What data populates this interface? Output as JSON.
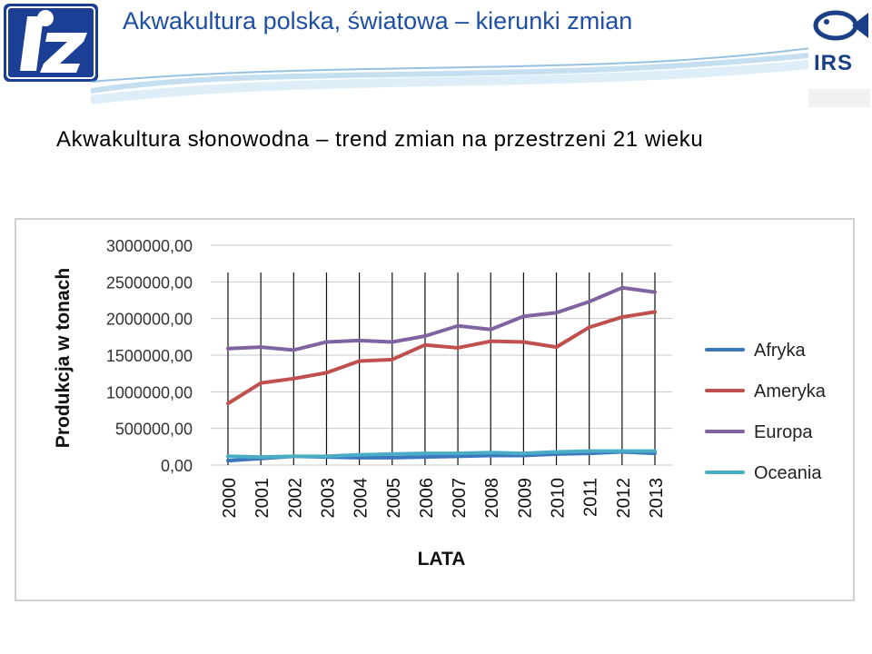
{
  "header": {
    "title": "Akwakultura polska, światowa – kierunki zmian",
    "left_logo_icon": "iz-logo-icon",
    "right_logo_icon": "irs-fish-logo-icon",
    "right_logo_text": "IRS"
  },
  "slide": {
    "subtitle": "Akwakultura słonowodna – trend zmian na przestrzeni 21 wieku"
  },
  "chart_data": {
    "type": "line",
    "title": "",
    "xlabel": "LATA",
    "ylabel": "Produkcja w tonach",
    "categories": [
      "2000",
      "2001",
      "2002",
      "2003",
      "2004",
      "2005",
      "2006",
      "2007",
      "2008",
      "2009",
      "2010",
      "2011",
      "2012",
      "2013"
    ],
    "yticks": [
      "0,00",
      "500000,00",
      "1000000,00",
      "1500000,00",
      "2000000,00",
      "2500000,00",
      "3000000,00"
    ],
    "ylim": [
      0,
      3000000
    ],
    "grid": "horizontal and vertical",
    "legend_position": "right",
    "series": [
      {
        "name": "Afryka",
        "color": "#3b77bd",
        "values": [
          60000,
          90000,
          120000,
          110000,
          100000,
          100000,
          110000,
          120000,
          130000,
          130000,
          150000,
          160000,
          180000,
          160000
        ]
      },
      {
        "name": "Ameryka",
        "color": "#c0504d",
        "values": [
          840000,
          1120000,
          1180000,
          1260000,
          1420000,
          1440000,
          1640000,
          1600000,
          1690000,
          1680000,
          1610000,
          1880000,
          2020000,
          2090000
        ]
      },
      {
        "name": "Europa",
        "color": "#8064a2",
        "values": [
          1590000,
          1610000,
          1570000,
          1680000,
          1700000,
          1680000,
          1760000,
          1900000,
          1850000,
          2030000,
          2080000,
          2230000,
          2420000,
          2360000
        ]
      },
      {
        "name": "Oceania",
        "color": "#4bacc6",
        "values": [
          120000,
          110000,
          120000,
          120000,
          140000,
          150000,
          160000,
          160000,
          170000,
          160000,
          180000,
          190000,
          190000,
          190000
        ]
      }
    ]
  }
}
